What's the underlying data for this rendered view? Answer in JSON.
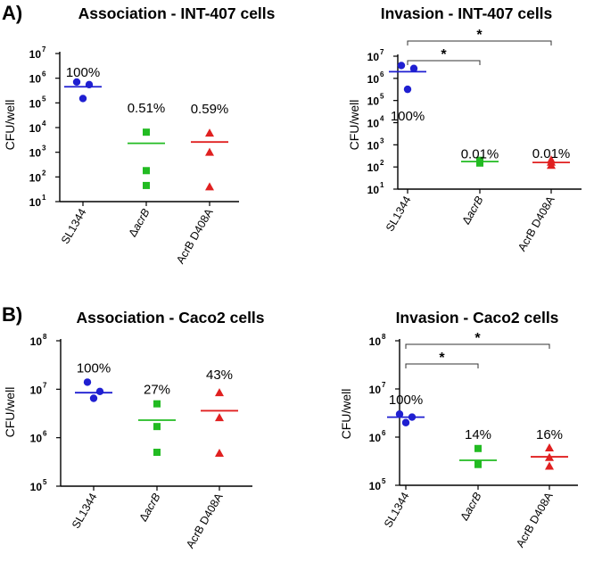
{
  "panel_labels": [
    "A)",
    "B)"
  ],
  "chart_data": [
    {
      "type": "scatter",
      "title": "Association - INT-407 cells",
      "ylabel": "CFU/well",
      "yscale": "log",
      "ylim": [
        10,
        10000000
      ],
      "categories": [
        "SL1344",
        "ΔacrB",
        "AcrB D408A"
      ],
      "category_parts": [
        [
          "SL1344",
          ""
        ],
        [
          "Δ",
          "acrB"
        ],
        [
          "AcrB D408A",
          ""
        ]
      ],
      "series": [
        {
          "name": "SL1344",
          "color": "#1f1fd1",
          "marker": "circle",
          "values": [
            700000,
            550000,
            150000
          ],
          "mean": 450000,
          "label": "100%"
        },
        {
          "name": "ΔacrB",
          "color": "#22bb22",
          "marker": "square",
          "values": [
            6500,
            180,
            45
          ],
          "mean": 2300,
          "label": "0.51%"
        },
        {
          "name": "AcrB D408A",
          "color": "#e02020",
          "marker": "triangle",
          "values": [
            6000,
            1000,
            40
          ],
          "mean": 2600,
          "label": "0.59%"
        }
      ],
      "yticks": [
        {
          "base": "10",
          "exp": "1"
        },
        {
          "base": "10",
          "exp": "2"
        },
        {
          "base": "10",
          "exp": "3"
        },
        {
          "base": "10",
          "exp": "4"
        },
        {
          "base": "10",
          "exp": "5"
        },
        {
          "base": "10",
          "exp": "6"
        },
        {
          "base": "10",
          "exp": "7"
        }
      ],
      "significance": []
    },
    {
      "type": "scatter",
      "title": "Invasion - INT-407 cells",
      "ylabel": "CFU/well",
      "yscale": "log",
      "ylim": [
        10,
        10000000
      ],
      "categories": [
        "SL1344",
        "ΔacrB",
        "AcrB D408A"
      ],
      "category_parts": [
        [
          "SL1344",
          ""
        ],
        [
          "Δ",
          "acrB"
        ],
        [
          "AcrB D408A",
          ""
        ]
      ],
      "series": [
        {
          "name": "SL1344",
          "color": "#1f1fd1",
          "marker": "circle",
          "values": [
            3800000,
            2800000,
            320000
          ],
          "mean": 2000000,
          "label": "100%"
        },
        {
          "name": "ΔacrB",
          "color": "#22bb22",
          "marker": "square",
          "values": [
            200,
            175,
            150
          ],
          "mean": 175,
          "label": "0.01%"
        },
        {
          "name": "AcrB D408A",
          "color": "#e02020",
          "marker": "triangle",
          "values": [
            210,
            165,
            120
          ],
          "mean": 160,
          "label": "0.01%"
        }
      ],
      "yticks": [
        {
          "base": "10",
          "exp": "1"
        },
        {
          "base": "10",
          "exp": "2"
        },
        {
          "base": "10",
          "exp": "3"
        },
        {
          "base": "10",
          "exp": "4"
        },
        {
          "base": "10",
          "exp": "5"
        },
        {
          "base": "10",
          "exp": "6"
        },
        {
          "base": "10",
          "exp": "7"
        }
      ],
      "significance": [
        {
          "from": 0,
          "to": 2,
          "label": "*"
        },
        {
          "from": 0,
          "to": 1,
          "label": "*"
        }
      ]
    },
    {
      "type": "scatter",
      "title": "Association - Caco2 cells",
      "ylabel": "CFU/well",
      "yscale": "log",
      "ylim": [
        100000,
        100000000
      ],
      "categories": [
        "SL1344",
        "ΔacrB",
        "AcrB D408A"
      ],
      "category_parts": [
        [
          "SL1344",
          ""
        ],
        [
          "Δ",
          "acrB"
        ],
        [
          "AcrB D408A",
          ""
        ]
      ],
      "series": [
        {
          "name": "SL1344",
          "color": "#1f1fd1",
          "marker": "circle",
          "values": [
            14000000,
            9000000,
            6500000
          ],
          "mean": 8500000,
          "label": "100%"
        },
        {
          "name": "ΔacrB",
          "color": "#22bb22",
          "marker": "square",
          "values": [
            5000000,
            1700000,
            500000
          ],
          "mean": 2300000,
          "label": "27%"
        },
        {
          "name": "AcrB D408A",
          "color": "#e02020",
          "marker": "triangle",
          "values": [
            8500000,
            2600000,
            480000
          ],
          "mean": 3600000,
          "label": "43%"
        }
      ],
      "yticks": [
        {
          "base": "10",
          "exp": "5"
        },
        {
          "base": "10",
          "exp": "6"
        },
        {
          "base": "10",
          "exp": "7"
        },
        {
          "base": "10",
          "exp": "8"
        }
      ],
      "significance": []
    },
    {
      "type": "scatter",
      "title": "Invasion - Caco2 cells",
      "ylabel": "CFU/well",
      "yscale": "log",
      "ylim": [
        100000,
        100000000
      ],
      "categories": [
        "SL1344",
        "ΔacrB",
        "AcrB D408A"
      ],
      "category_parts": [
        [
          "SL1344",
          ""
        ],
        [
          "Δ",
          "acrB"
        ],
        [
          "AcrB D408A",
          ""
        ]
      ],
      "series": [
        {
          "name": "SL1344",
          "color": "#1f1fd1",
          "marker": "circle",
          "values": [
            3000000,
            2600000,
            2000000
          ],
          "mean": 2600000,
          "label": "100%"
        },
        {
          "name": "ΔacrB",
          "color": "#22bb22",
          "marker": "square",
          "values": [
            580000,
            280000,
            270000
          ],
          "mean": 330000,
          "label": "14%"
        },
        {
          "name": "AcrB D408A",
          "color": "#e02020",
          "marker": "triangle",
          "values": [
            600000,
            380000,
            250000
          ],
          "mean": 390000,
          "label": "16%"
        }
      ],
      "yticks": [
        {
          "base": "10",
          "exp": "5"
        },
        {
          "base": "10",
          "exp": "6"
        },
        {
          "base": "10",
          "exp": "7"
        },
        {
          "base": "10",
          "exp": "8"
        }
      ],
      "significance": [
        {
          "from": 0,
          "to": 2,
          "label": "*"
        },
        {
          "from": 0,
          "to": 1,
          "label": "*"
        }
      ]
    }
  ]
}
